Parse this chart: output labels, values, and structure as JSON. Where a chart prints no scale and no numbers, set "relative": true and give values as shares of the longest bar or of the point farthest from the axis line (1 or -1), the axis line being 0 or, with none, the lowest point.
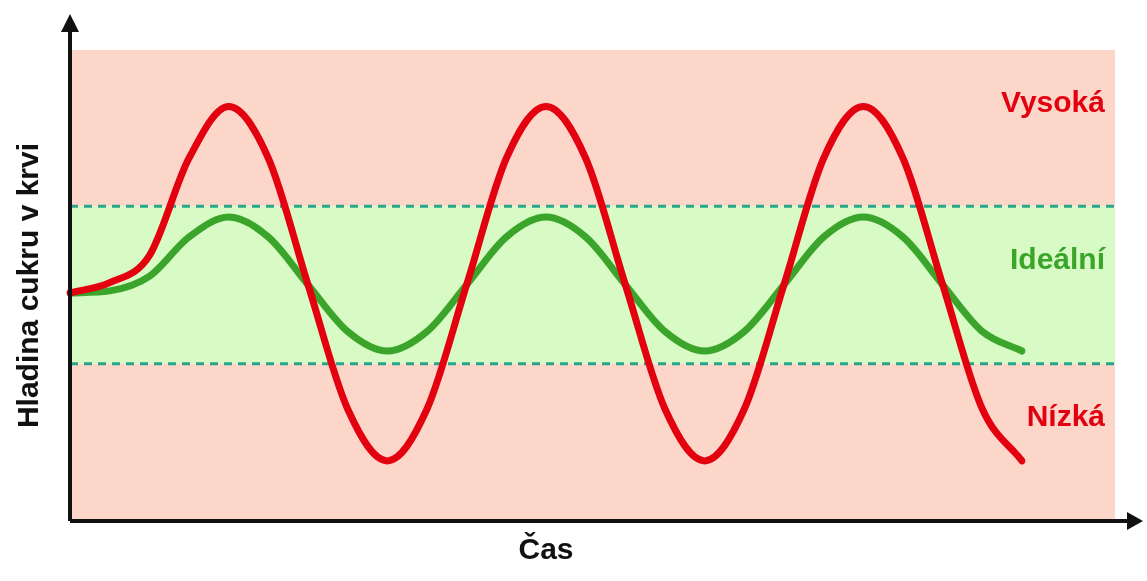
{
  "chart_data": {
    "type": "line",
    "relative": true,
    "xlabel": "Čas",
    "ylabel": "Hladina cukru v krvi",
    "categories": [
      null,
      null,
      null,
      null,
      null,
      null,
      null,
      null,
      null,
      null,
      null,
      null,
      null,
      null,
      null,
      null,
      null,
      null,
      null,
      null,
      null,
      null,
      null,
      null,
      null
    ],
    "series": [
      {
        "color": "#e3000f",
        "values": [
          0.55,
          0.575,
          0.64,
          0.875,
          1,
          0.875,
          0.57,
          0.27,
          0.145,
          0.27,
          0.57,
          0.875,
          1,
          0.875,
          0.57,
          0.27,
          0.145,
          0.27,
          0.57,
          0.875,
          1,
          0.875,
          0.57,
          0.27,
          0.145
        ]
      },
      {
        "color": "#3aa52a",
        "values": [
          0.55,
          0.555,
          0.59,
          0.685,
          0.733,
          0.685,
          0.57,
          0.457,
          0.41,
          0.457,
          0.57,
          0.685,
          0.733,
          0.685,
          0.57,
          0.457,
          0.41,
          0.457,
          0.57,
          0.685,
          0.733,
          0.685,
          0.57,
          0.457,
          0.41
        ]
      }
    ],
    "bands": [
      {
        "axis": "y",
        "from": 0.759,
        "to": 1.136,
        "label": "Vysoká",
        "color": "#fdd6ca"
      },
      {
        "axis": "y",
        "from": 0.379,
        "to": 0.759,
        "label": "Ideální",
        "color": "#d8fbc6"
      },
      {
        "axis": "y",
        "from": 0,
        "to": 0.379,
        "label": "Nízká",
        "color": "#fdd6ca"
      }
    ],
    "ref_lines": [
      {
        "axis": "y",
        "value": 0.759,
        "color": "#2aa58a",
        "line_style": "dashed"
      },
      {
        "axis": "y",
        "value": 0.379,
        "color": "#2aa58a",
        "line_style": "dashed"
      }
    ],
    "grid": false,
    "legend": false,
    "marker": "none",
    "line_style": "solid"
  }
}
